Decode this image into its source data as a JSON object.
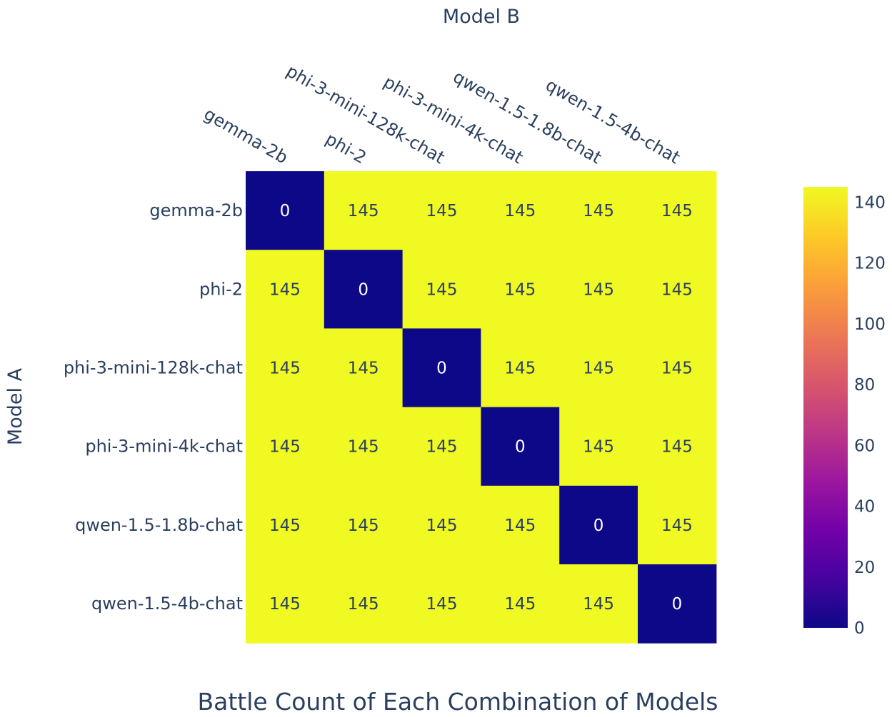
{
  "chart_data": {
    "type": "heatmap",
    "title": "Battle Count of Each Combination of Models",
    "xlabel": "Model B",
    "ylabel": "Model A",
    "x": [
      "gemma-2b",
      "phi-2",
      "phi-3-mini-128k-chat",
      "phi-3-mini-4k-chat",
      "qwen-1.5-1.8b-chat",
      "qwen-1.5-4b-chat"
    ],
    "y": [
      "gemma-2b",
      "phi-2",
      "phi-3-mini-128k-chat",
      "phi-3-mini-4k-chat",
      "qwen-1.5-1.8b-chat",
      "qwen-1.5-4b-chat"
    ],
    "z": [
      [
        0,
        145,
        145,
        145,
        145,
        145
      ],
      [
        145,
        0,
        145,
        145,
        145,
        145
      ],
      [
        145,
        145,
        0,
        145,
        145,
        145
      ],
      [
        145,
        145,
        145,
        0,
        145,
        145
      ],
      [
        145,
        145,
        145,
        145,
        0,
        145
      ],
      [
        145,
        145,
        145,
        145,
        145,
        0
      ]
    ],
    "colorscale": "Plasma",
    "zrange": [
      0,
      145
    ],
    "colorbar_ticks": [
      "0",
      "20",
      "40",
      "60",
      "80",
      "100",
      "120",
      "140"
    ],
    "grid": false
  }
}
